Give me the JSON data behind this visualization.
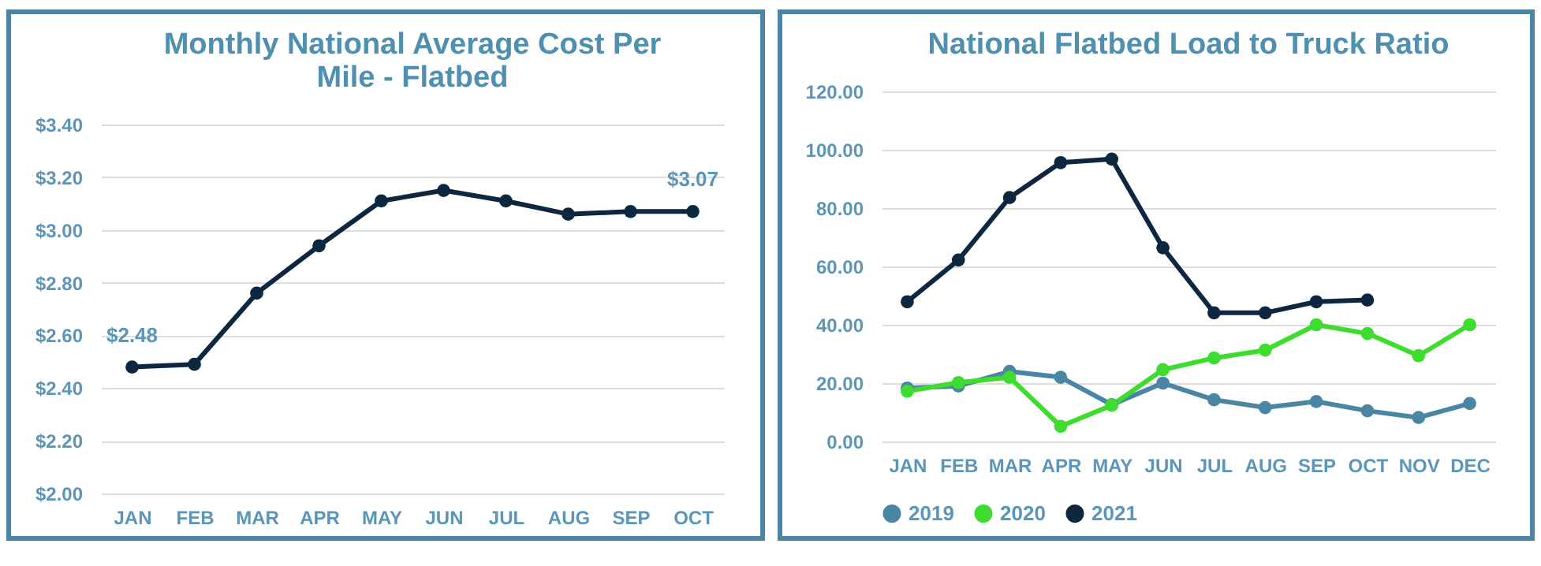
{
  "chart_data": [
    {
      "type": "line",
      "title": "Monthly National Average Cost Per Mile - Flatbed",
      "categories": [
        "JAN",
        "FEB",
        "MAR",
        "APR",
        "MAY",
        "JUN",
        "JUL",
        "AUG",
        "SEP",
        "OCT"
      ],
      "values": [
        2.48,
        2.49,
        2.76,
        2.94,
        3.11,
        3.15,
        3.11,
        3.06,
        3.07,
        3.07
      ],
      "value_labels": [
        "$2.48",
        null,
        null,
        null,
        null,
        null,
        null,
        null,
        null,
        "$3.07"
      ],
      "color": "#0d2740",
      "ylim": [
        2.0,
        3.4
      ],
      "yticks": [
        {
          "value": 2.0,
          "label": "$2.00"
        },
        {
          "value": 2.2,
          "label": "$2.20"
        },
        {
          "value": 2.4,
          "label": "$2.40"
        },
        {
          "value": 2.6,
          "label": "$2.60"
        },
        {
          "value": 2.8,
          "label": "$2.80"
        },
        {
          "value": 3.0,
          "label": "$3.00"
        },
        {
          "value": 3.2,
          "label": "$3.20"
        },
        {
          "value": 3.4,
          "label": "$3.40"
        }
      ],
      "grid": "y",
      "marker": "circle",
      "legend": false
    },
    {
      "type": "line",
      "title": "National Flatbed Load to Truck Ratio",
      "categories": [
        "JAN",
        "FEB",
        "MAR",
        "APR",
        "MAY",
        "JUN",
        "JUL",
        "AUG",
        "SEP",
        "OCT",
        "NOV",
        "DEC"
      ],
      "series": [
        {
          "name": "2019",
          "color": "#4a86a4",
          "values": [
            18.3,
            19,
            24,
            22,
            12.6,
            20,
            14.3,
            11.6,
            13.7,
            10.5,
            8.2,
            13
          ]
        },
        {
          "name": "2020",
          "color": "#3ddc2e",
          "values": [
            17.2,
            20.2,
            22,
            5.2,
            12.4,
            24.6,
            28.6,
            31.3,
            40,
            37,
            29.4,
            40
          ]
        },
        {
          "name": "2021",
          "color": "#0d2740",
          "values": [
            47.9,
            62.2,
            83.6,
            95.6,
            96.8,
            66.4,
            44.1,
            44.1,
            47.9,
            48.5,
            null,
            null
          ]
        }
      ],
      "ylim": [
        0,
        120
      ],
      "yticks": [
        {
          "value": 0,
          "label": "0.00"
        },
        {
          "value": 20,
          "label": "20.00"
        },
        {
          "value": 40,
          "label": "40.00"
        },
        {
          "value": 60,
          "label": "60.00"
        },
        {
          "value": 80,
          "label": "80.00"
        },
        {
          "value": 100,
          "label": "100.00"
        },
        {
          "value": 120,
          "label": "120.00"
        }
      ],
      "grid": "y",
      "marker": "circle",
      "legend": "bottom"
    }
  ]
}
